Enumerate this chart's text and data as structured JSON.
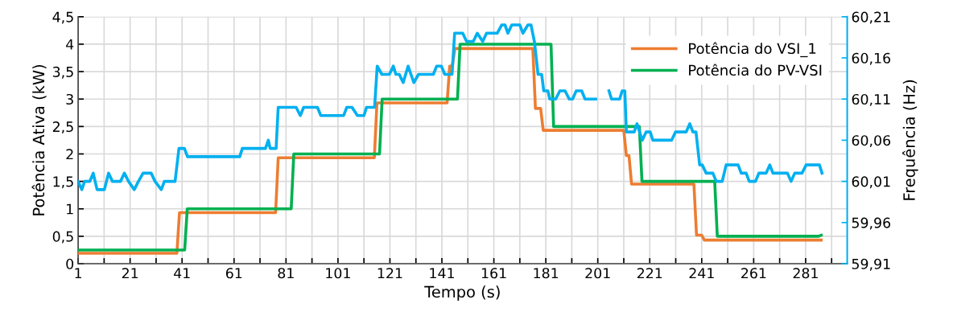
{
  "chart_data": {
    "type": "line",
    "xlabel": "Tempo (s)",
    "ylabel": "Potência Ativa (kW)",
    "y2label": "Frequência (Hz)",
    "xlim": [
      1,
      297
    ],
    "xticks": [
      1,
      {
        "value": 11,
        "label": null
      },
      21,
      {
        "value": 31,
        "label": null
      },
      41,
      {
        "value": 51,
        "label": null
      },
      61,
      {
        "value": 71,
        "label": null
      },
      81,
      {
        "value": 91,
        "label": null
      },
      101,
      {
        "value": 111,
        "label": null
      },
      121,
      {
        "value": 131,
        "label": null
      },
      141,
      {
        "value": 151,
        "label": null
      },
      161,
      {
        "value": 171,
        "label": null
      },
      181,
      {
        "value": 191,
        "label": null
      },
      201,
      {
        "value": 211,
        "label": null
      },
      221,
      {
        "value": 231,
        "label": null
      },
      241,
      {
        "value": 251,
        "label": null
      },
      261,
      {
        "value": 271,
        "label": null
      },
      281,
      {
        "value": 291,
        "label": null
      }
    ],
    "ylim": [
      0,
      4.5
    ],
    "yticks": [
      0,
      {
        "value": 0.5,
        "label": "0,5"
      },
      1,
      {
        "value": 1.5,
        "label": "1,5"
      },
      2,
      {
        "value": 2.5,
        "label": "2,5"
      },
      3,
      {
        "value": 3.5,
        "label": "3,5"
      },
      4,
      {
        "value": 4.5,
        "label": "4,5"
      }
    ],
    "y2lim": [
      59.91,
      60.21
    ],
    "y2ticks": [
      {
        "value": 59.91,
        "label": "59,91"
      },
      {
        "value": 59.96,
        "label": "59,96"
      },
      {
        "value": 60.01,
        "label": "60,01"
      },
      {
        "value": 60.06,
        "label": "60,06"
      },
      {
        "value": 60.11,
        "label": "60,11"
      },
      {
        "value": 60.16,
        "label": "60,16"
      },
      {
        "value": 60.21,
        "label": "60,21"
      }
    ],
    "grid": true,
    "legend": "top right",
    "line_style": "solid",
    "series": [
      {
        "name": "Potência do VSI_1",
        "color": "#ed7d31",
        "x": [
          1,
          39,
          40,
          77,
          78,
          115,
          116,
          143,
          144,
          145,
          146,
          176,
          177,
          179,
          180,
          211,
          212,
          213,
          214,
          238,
          239,
          241,
          242,
          287
        ],
        "values": [
          0.19,
          0.19,
          0.93,
          0.93,
          1.93,
          1.93,
          2.93,
          2.93,
          3.6,
          3.6,
          3.92,
          3.92,
          2.83,
          2.83,
          2.43,
          2.43,
          1.97,
          1.97,
          1.45,
          1.45,
          0.52,
          0.52,
          0.43,
          0.43
        ]
      },
      {
        "name": "Potência do PV-VSI",
        "color": "#00b050",
        "x": [
          1,
          42,
          43,
          83,
          84,
          117,
          118,
          147,
          148,
          183,
          184,
          217,
          218,
          246,
          247,
          286,
          287
        ],
        "values": [
          0.25,
          0.25,
          1.0,
          1.0,
          2.0,
          2.0,
          3.0,
          3.0,
          4.0,
          4.0,
          2.5,
          2.5,
          1.5,
          1.5,
          0.5,
          0.5,
          0.52
        ]
      },
      {
        "axis": "y2",
        "color": "#00b0f0",
        "x": [
          1,
          2.4,
          3.5,
          5.5,
          6.8,
          8.3,
          11.1,
          12.7,
          14.2,
          17.3,
          18.8,
          20.4,
          22.6,
          24.2,
          26,
          29.1,
          30.6,
          33,
          34.2,
          38.3,
          39.8,
          41.9,
          43.1,
          63.2,
          64.2,
          73.1,
          74.2,
          74.9,
          77.2,
          78,
          84.9,
          86.5,
          87.8,
          93.1,
          94.4,
          103.2,
          104.4,
          106.4,
          108.5,
          111,
          112,
          115.1,
          116.1,
          117.9,
          120.8,
          122.3,
          123.3,
          124.6,
          126.1,
          128,
          130.2,
          132,
          137.7,
          139,
          140.8,
          142.1,
          144.9,
          145.9,
          149,
          150.5,
          153.1,
          154.6,
          156.7,
          158.2,
          162.3,
          164,
          165.3,
          166.4,
          167.9,
          171,
          172.2,
          174.1,
          175.3,
          176.6,
          178,
          179.4,
          180.2,
          181.8,
          182.5,
          184.8,
          186.4,
          188.4,
          190,
          191.3,
          192.7,
          194.8,
          196.1,
          200.2,
          202.7,
          205.3,
          206.3,
          209.4,
          210.4,
          211.4,
          212,
          215,
          216.1,
          218.1,
          219.6,
          221.2,
          222.2,
          229.4,
          230.9,
          235,
          236.4,
          237.6,
          238.8,
          240.2,
          241.2,
          242.7,
          245.3,
          246.6,
          248.9,
          250.4,
          255,
          256.2,
          258.1,
          259.3,
          261.7,
          263,
          265.8,
          267.2,
          268.4,
          274,
          275.4,
          276.8,
          279.6,
          281.2,
          286.3,
          287.3
        ],
        "values": [
          60.01,
          60.0,
          60.01,
          60.01,
          60.02,
          60.0,
          60.0,
          60.02,
          60.01,
          60.01,
          60.02,
          60.01,
          60.0,
          60.01,
          60.02,
          60.02,
          60.01,
          60.0,
          60.01,
          60.01,
          60.05,
          60.05,
          60.04,
          60.04,
          60.05,
          60.05,
          60.06,
          60.05,
          60.05,
          60.1,
          60.1,
          60.09,
          60.1,
          60.1,
          60.09,
          60.09,
          60.1,
          60.1,
          60.09,
          60.09,
          60.1,
          60.1,
          60.15,
          60.14,
          60.14,
          60.15,
          60.14,
          60.14,
          60.13,
          60.15,
          60.13,
          60.14,
          60.14,
          60.15,
          60.15,
          60.14,
          60.14,
          60.19,
          60.19,
          60.18,
          60.18,
          60.19,
          60.18,
          60.19,
          60.19,
          60.2,
          60.2,
          60.19,
          60.2,
          60.2,
          60.19,
          60.2,
          60.2,
          60.18,
          60.14,
          60.14,
          60.12,
          60.12,
          60.11,
          60.11,
          60.12,
          60.12,
          60.11,
          60.11,
          60.12,
          60.12,
          60.11,
          60.11,
          null,
          60.12,
          60.11,
          60.11,
          60.12,
          60.12,
          60.07,
          60.07,
          60.08,
          60.06,
          60.07,
          60.07,
          60.06,
          60.06,
          60.07,
          60.07,
          60.08,
          60.07,
          60.07,
          60.03,
          60.03,
          60.02,
          60.02,
          60.01,
          60.01,
          60.03,
          60.03,
          60.02,
          60.02,
          60.01,
          60.01,
          60.02,
          60.02,
          60.03,
          60.02,
          60.02,
          60.01,
          60.02,
          60.02,
          60.03,
          60.03,
          60.02
        ]
      }
    ]
  }
}
